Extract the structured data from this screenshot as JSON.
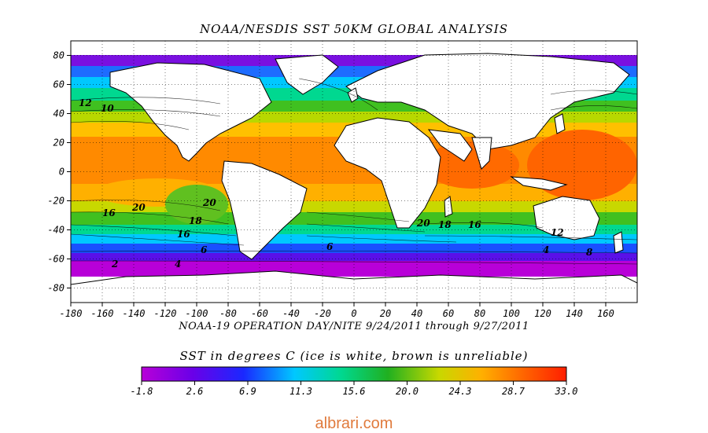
{
  "title": "NOAA/NESDIS SST 50KM GLOBAL ANALYSIS",
  "subtitle": "NOAA-19 OPERATION DAY/NITE  9/24/2011 through 9/27/2011",
  "colorbar": {
    "title": "SST in degrees C (ice is white, brown is unreliable)",
    "ticks": [
      "-1.8",
      "2.6",
      "6.9",
      "11.3",
      "15.6",
      "20.0",
      "24.3",
      "28.7",
      "33.0"
    ],
    "colors": [
      "#b800d8",
      "#6a00e8",
      "#1a28ff",
      "#00c8ff",
      "#00d890",
      "#20b020",
      "#c8d800",
      "#ffb000",
      "#ff6400",
      "#ff1e00"
    ]
  },
  "axes": {
    "xticks": [
      "-180",
      "-160",
      "-140",
      "-120",
      "-100",
      "-80",
      "-60",
      "-40",
      "-20",
      "0",
      "20",
      "40",
      "60",
      "80",
      "100",
      "120",
      "140",
      "160"
    ],
    "yticks": [
      "80",
      "60",
      "40",
      "20",
      "0",
      "-20",
      "-40",
      "-60",
      "-80"
    ]
  },
  "contour_labels": [
    "12",
    "10",
    "20",
    "18",
    "16",
    "6",
    "4",
    "2",
    "20",
    "18",
    "16",
    "12",
    "8",
    "4",
    "6",
    "20",
    "16"
  ],
  "watermark": "albrari.com"
}
